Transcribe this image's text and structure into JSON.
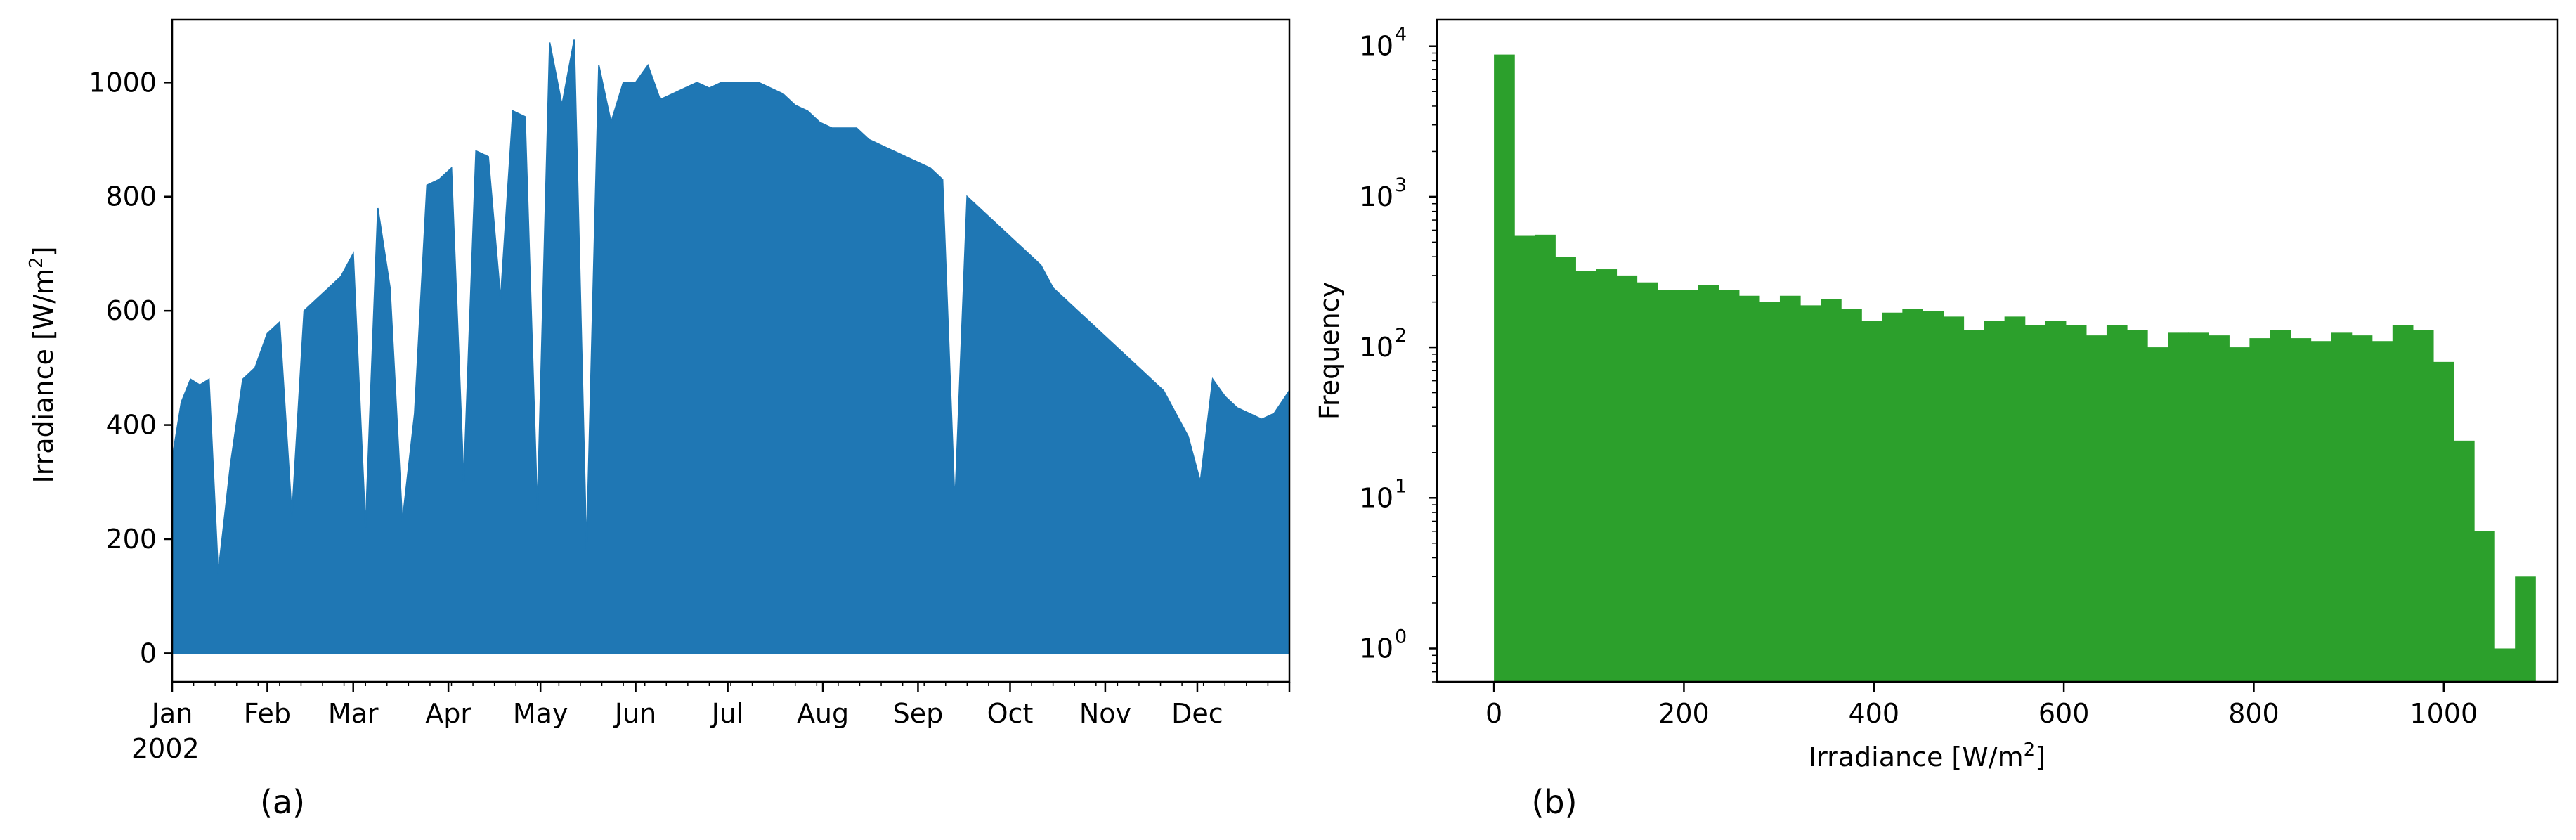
{
  "chart_data": [
    {
      "panel": "(a)",
      "type": "area",
      "title": "",
      "xlabel": "",
      "ylabel": "Irradiance [W/m²]",
      "year_label": "2002",
      "x_tick_labels": [
        "Jan",
        "Feb",
        "Mar",
        "Apr",
        "May",
        "Jun",
        "Jul",
        "Aug",
        "Sep",
        "Oct",
        "Nov",
        "Dec"
      ],
      "x_range": [
        "2002-01-01",
        "2002-12-31"
      ],
      "ylim": [
        -50,
        1110
      ],
      "y_ticks": [
        0,
        200,
        400,
        600,
        800,
        1000
      ],
      "color": "#1f77b4",
      "series": [
        {
          "x": [
            "2002-01-01",
            "2002-01-04",
            "2002-01-07",
            "2002-01-10",
            "2002-01-13",
            "2002-01-16",
            "2002-01-20",
            "2002-01-24",
            "2002-01-28",
            "2002-02-01",
            "2002-02-05",
            "2002-02-09",
            "2002-02-13",
            "2002-02-17",
            "2002-02-21",
            "2002-02-25",
            "2002-03-01",
            "2002-03-05",
            "2002-03-09",
            "2002-03-13",
            "2002-03-17",
            "2002-03-21",
            "2002-03-25",
            "2002-03-29",
            "2002-04-02",
            "2002-04-06",
            "2002-04-10",
            "2002-04-14",
            "2002-04-18",
            "2002-04-22",
            "2002-04-26",
            "2002-04-30",
            "2002-05-04",
            "2002-05-08",
            "2002-05-12",
            "2002-05-16",
            "2002-05-20",
            "2002-05-24",
            "2002-05-28",
            "2002-06-01",
            "2002-06-05",
            "2002-06-09",
            "2002-06-13",
            "2002-06-17",
            "2002-06-21",
            "2002-06-25",
            "2002-06-29",
            "2002-07-03",
            "2002-07-07",
            "2002-07-11",
            "2002-07-15",
            "2002-07-19",
            "2002-07-23",
            "2002-07-27",
            "2002-07-31",
            "2002-08-04",
            "2002-08-08",
            "2002-08-12",
            "2002-08-16",
            "2002-08-20",
            "2002-08-24",
            "2002-08-28",
            "2002-09-01",
            "2002-09-05",
            "2002-09-09",
            "2002-09-13",
            "2002-09-17",
            "2002-09-21",
            "2002-09-25",
            "2002-09-29",
            "2002-10-03",
            "2002-10-07",
            "2002-10-11",
            "2002-10-15",
            "2002-10-19",
            "2002-10-23",
            "2002-10-27",
            "2002-10-31",
            "2002-11-04",
            "2002-11-08",
            "2002-11-12",
            "2002-11-16",
            "2002-11-20",
            "2002-11-24",
            "2002-11-28",
            "2002-12-02",
            "2002-12-06",
            "2002-12-10",
            "2002-12-14",
            "2002-12-18",
            "2002-12-22",
            "2002-12-26",
            "2002-12-31"
          ],
          "y": [
            340,
            440,
            480,
            470,
            480,
            140,
            330,
            480,
            500,
            560,
            580,
            240,
            600,
            620,
            640,
            660,
            700,
            220,
            780,
            640,
            230,
            420,
            820,
            830,
            850,
            300,
            880,
            870,
            620,
            950,
            940,
            250,
            1070,
            960,
            1075,
            180,
            1030,
            930,
            1000,
            1000,
            1030,
            970,
            980,
            990,
            1000,
            990,
            1000,
            1000,
            1000,
            1000,
            990,
            980,
            960,
            950,
            930,
            920,
            920,
            920,
            900,
            890,
            880,
            870,
            860,
            850,
            830,
            260,
            800,
            780,
            760,
            740,
            720,
            700,
            680,
            640,
            620,
            600,
            580,
            560,
            540,
            520,
            500,
            480,
            460,
            420,
            380,
            300,
            480,
            450,
            430,
            420,
            410,
            420,
            460
          ]
        }
      ]
    },
    {
      "panel": "(b)",
      "type": "bar",
      "title": "",
      "xlabel": "Irradiance [W/m²]",
      "ylabel": "Frequency",
      "y_scale": "log",
      "xlim": [
        -60,
        1120
      ],
      "ylim": [
        0.6,
        15000
      ],
      "x_ticks": [
        0,
        200,
        400,
        600,
        800,
        1000
      ],
      "y_tick_labels": [
        {
          "base": "10",
          "exp": "0",
          "value": 1
        },
        {
          "base": "10",
          "exp": "1",
          "value": 10
        },
        {
          "base": "10",
          "exp": "2",
          "value": 100
        },
        {
          "base": "10",
          "exp": "3",
          "value": 1000
        },
        {
          "base": "10",
          "exp": "4",
          "value": 10000
        }
      ],
      "color": "#2ca02c",
      "bin_start": 0,
      "bin_width": 21.5,
      "values": [
        8800,
        550,
        560,
        400,
        320,
        330,
        300,
        270,
        240,
        240,
        260,
        240,
        220,
        200,
        220,
        190,
        210,
        180,
        150,
        170,
        180,
        175,
        160,
        130,
        150,
        160,
        140,
        150,
        140,
        120,
        140,
        130,
        100,
        125,
        125,
        120,
        100,
        115,
        130,
        115,
        110,
        125,
        120,
        110,
        140,
        130,
        80,
        24,
        6,
        1,
        3
      ]
    }
  ],
  "labels": {
    "panel_a": "(a)",
    "panel_b": "(b)"
  }
}
